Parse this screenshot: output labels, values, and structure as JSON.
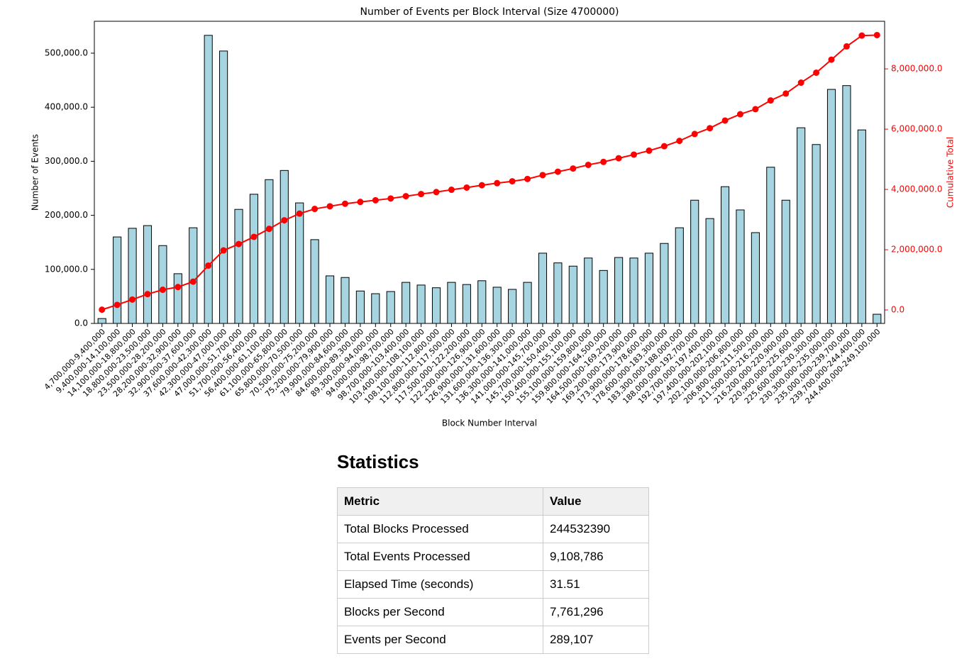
{
  "chart_data": {
    "type": "bar",
    "title": "Number of Events per Block Interval (Size 4700000)",
    "x_label": "Block Number Interval",
    "y_label": "Number of Events",
    "y2_label": "Cumulative Total",
    "categories": [
      "4,700,000-9,400,000",
      "9,400,000-14,100,000",
      "14,100,000-18,800,000",
      "18,800,000-23,500,000",
      "23,500,000-28,200,000",
      "28,200,000-32,900,000",
      "32,900,000-37,600,000",
      "37,600,000-42,300,000",
      "42,300,000-47,000,000",
      "47,000,000-51,700,000",
      "51,700,000-56,400,000",
      "56,400,000-61,100,000",
      "61,100,000-65,800,000",
      "65,800,000-70,500,000",
      "70,500,000-75,200,000",
      "75,200,000-79,900,000",
      "79,900,000-84,600,000",
      "84,600,000-89,300,000",
      "89,300,000-94,000,000",
      "94,000,000-98,700,000",
      "98,700,000-103,400,000",
      "103,400,000-108,100,000",
      "108,100,000-112,800,000",
      "112,800,000-117,500,000",
      "117,500,000-122,200,000",
      "122,200,000-126,900,000",
      "126,900,000-131,600,000",
      "131,600,000-136,300,000",
      "136,300,000-141,000,000",
      "141,000,000-145,700,000",
      "145,700,000-150,400,000",
      "150,400,000-155,100,000",
      "155,100,000-159,800,000",
      "159,800,000-164,500,000",
      "164,500,000-169,200,000",
      "169,200,000-173,900,000",
      "173,900,000-178,600,000",
      "178,600,000-183,300,000",
      "183,300,000-188,000,000",
      "188,000,000-192,700,000",
      "192,700,000-197,400,000",
      "197,400,000-202,100,000",
      "202,100,000-206,800,000",
      "206,800,000-211,500,000",
      "211,500,000-216,200,000",
      "216,200,000-220,900,000",
      "220,900,000-225,600,000",
      "225,600,000-230,300,000",
      "230,300,000-235,000,000",
      "235,000,000-239,700,000",
      "239,700,000-244,400,000",
      "244,400,000-249,100,000"
    ],
    "series": [
      {
        "color": "#a6d4e0",
        "values": [
          9000,
          160000,
          176000,
          181000,
          144000,
          92000,
          177000,
          533000,
          504000,
          211000,
          239000,
          266000,
          283000,
          223000,
          155000,
          88000,
          85000,
          60000,
          55000,
          59000,
          76000,
          71000,
          66000,
          76000,
          72000,
          79000,
          67000,
          63000,
          76000,
          130000,
          112000,
          106000,
          121000,
          98000,
          122000,
          121000,
          130000,
          148000,
          177000,
          228000,
          194000,
          253000,
          210000,
          168000,
          289000,
          228000,
          362000,
          331000,
          433000,
          440000,
          358000,
          17000
        ]
      },
      {
        "type": "line",
        "axis": "y2",
        "color": "#ff0000",
        "values": [
          9000,
          169000,
          345000,
          526000,
          670000,
          762000,
          939000,
          1472000,
          1976000,
          2187000,
          2426000,
          2692000,
          2975000,
          3198000,
          3353000,
          3441000,
          3526000,
          3586000,
          3641000,
          3700000,
          3776000,
          3847000,
          3913000,
          3989000,
          4061000,
          4140000,
          4207000,
          4270000,
          4346000,
          4476000,
          4588000,
          4694000,
          4815000,
          4913000,
          5035000,
          5156000,
          5286000,
          5434000,
          5611000,
          5839000,
          6033000,
          6286000,
          6496000,
          6664000,
          6953000,
          7181000,
          7543000,
          7874000,
          8307000,
          8747000,
          9105000,
          9122000
        ]
      }
    ],
    "ylim": [
      0,
      559000
    ],
    "yticks": [
      {
        "value": 0,
        "label": "0.0"
      },
      {
        "value": 100000,
        "label": "100,000.0"
      },
      {
        "value": 200000,
        "label": "200,000.0"
      },
      {
        "value": 300000,
        "label": "300,000.0"
      },
      {
        "value": 400000,
        "label": "400,000.0"
      },
      {
        "value": 500000,
        "label": "500,000.0"
      }
    ],
    "y2lim": [
      -447000,
      9580000
    ],
    "y2ticks": [
      {
        "value": 0,
        "label": "0.0"
      },
      {
        "value": 2000000,
        "label": "2,000,000.0"
      },
      {
        "value": 4000000,
        "label": "4,000,000.0"
      },
      {
        "value": 6000000,
        "label": "6,000,000.0"
      },
      {
        "value": 8000000,
        "label": "8,000,000.0"
      }
    ]
  },
  "statistics": {
    "title": "Statistics",
    "header": [
      "Metric",
      "Value"
    ],
    "rows": [
      [
        "Total Blocks Processed",
        "244532390"
      ],
      [
        "Total Events Processed",
        "9,108,786"
      ],
      [
        "Elapsed Time (seconds)",
        "31.51"
      ],
      [
        "Blocks per Second",
        "7,761,296"
      ],
      [
        "Events per Second",
        "289,107"
      ]
    ]
  }
}
